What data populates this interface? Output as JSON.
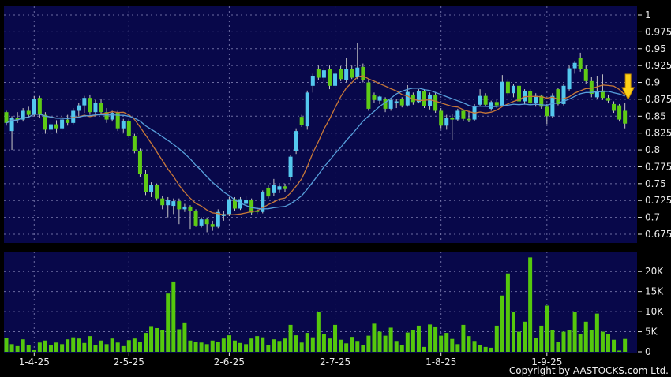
{
  "footer": {
    "copyright": "Copyright by AASTOCKS.com Ltd."
  },
  "colors": {
    "page_background": "#000000",
    "panel_background": "#08084a",
    "grid": "#8f8fc0",
    "up_candle": "#54c8ee",
    "down_candle": "#5ecb15",
    "wick": "#c8c8c8",
    "ma_short": "#c87838",
    "ma_long": "#58a0dc",
    "volume_bar": "#55c80d",
    "axis_text": "#e8e8e8",
    "arrow_fill": "#fdd017",
    "arrow_stroke": "#c98f00"
  },
  "chart_data": [
    {
      "type": "candlestick",
      "panel": "price",
      "title": "",
      "grid": true,
      "legend": "none",
      "ylim": [
        0.6625,
        1.01
      ],
      "y_axis": {
        "tick_labels": [
          "1",
          "0.975",
          "0.95",
          "0.925",
          "0.9",
          "0.875",
          "0.85",
          "0.825",
          "0.8",
          "0.775",
          "0.75",
          "0.725",
          "0.7",
          "0.675"
        ],
        "tick_values": [
          1,
          0.975,
          0.95,
          0.925,
          0.9,
          0.875,
          0.85,
          0.825,
          0.8,
          0.775,
          0.75,
          0.725,
          0.7,
          0.675
        ]
      },
      "x_axis": {
        "month_labels": [
          "1-4-25",
          "2-5-25",
          "2-6-25",
          "2-7-25",
          "1-8-25",
          "1-9-25"
        ],
        "month_indices": [
          5,
          22,
          40,
          59,
          78,
          97
        ]
      },
      "series": [
        {
          "name": "ohlc",
          "type": "candle",
          "data": [
            [
              0.856,
              0.858,
              0.836,
              0.84
            ],
            [
              0.828,
              0.85,
              0.8,
              0.848
            ],
            [
              0.848,
              0.856,
              0.84,
              0.845
            ],
            [
              0.845,
              0.862,
              0.842,
              0.858
            ],
            [
              0.858,
              0.864,
              0.848,
              0.852
            ],
            [
              0.852,
              0.88,
              0.85,
              0.876
            ],
            [
              0.877,
              0.88,
              0.848,
              0.852
            ],
            [
              0.852,
              0.856,
              0.824,
              0.83
            ],
            [
              0.83,
              0.842,
              0.822,
              0.838
            ],
            [
              0.838,
              0.844,
              0.826,
              0.832
            ],
            [
              0.832,
              0.848,
              0.83,
              0.845
            ],
            [
              0.845,
              0.852,
              0.836,
              0.84
            ],
            [
              0.84,
              0.862,
              0.838,
              0.858
            ],
            [
              0.858,
              0.87,
              0.85,
              0.866
            ],
            [
              0.866,
              0.88,
              0.855,
              0.877
            ],
            [
              0.877,
              0.882,
              0.852,
              0.856
            ],
            [
              0.856,
              0.874,
              0.85,
              0.87
            ],
            [
              0.87,
              0.876,
              0.852,
              0.856
            ],
            [
              0.856,
              0.862,
              0.84,
              0.845
            ],
            [
              0.845,
              0.858,
              0.842,
              0.855
            ],
            [
              0.855,
              0.858,
              0.828,
              0.832
            ],
            [
              0.832,
              0.846,
              0.826,
              0.843
            ],
            [
              0.843,
              0.846,
              0.818,
              0.82
            ],
            [
              0.82,
              0.824,
              0.795,
              0.798
            ],
            [
              0.798,
              0.802,
              0.76,
              0.765
            ],
            [
              0.765,
              0.77,
              0.733,
              0.737
            ],
            [
              0.737,
              0.752,
              0.73,
              0.748
            ],
            [
              0.748,
              0.75,
              0.725,
              0.728
            ],
            [
              0.728,
              0.732,
              0.712,
              0.718
            ],
            [
              0.718,
              0.73,
              0.7,
              0.726
            ],
            [
              0.717,
              0.728,
              0.705,
              0.724
            ],
            [
              0.724,
              0.728,
              0.69,
              0.712
            ],
            [
              0.712,
              0.72,
              0.708,
              0.716
            ],
            [
              0.716,
              0.718,
              0.683,
              0.71
            ],
            [
              0.71,
              0.712,
              0.686,
              0.688
            ],
            [
              0.688,
              0.7,
              0.685,
              0.697
            ],
            [
              0.697,
              0.7,
              0.678,
              0.69
            ],
            [
              0.69,
              0.695,
              0.68,
              0.686
            ],
            [
              0.686,
              0.712,
              0.684,
              0.708
            ],
            [
              0.702,
              0.71,
              0.695,
              0.705
            ],
            [
              0.705,
              0.73,
              0.702,
              0.727
            ],
            [
              0.727,
              0.73,
              0.71,
              0.713
            ],
            [
              0.713,
              0.73,
              0.711,
              0.727
            ],
            [
              0.72,
              0.732,
              0.715,
              0.726
            ],
            [
              0.726,
              0.728,
              0.704,
              0.707
            ],
            [
              0.71,
              0.716,
              0.705,
              0.708
            ],
            [
              0.708,
              0.74,
              0.706,
              0.737
            ],
            [
              0.744,
              0.748,
              0.728,
              0.731
            ],
            [
              0.736,
              0.757,
              0.732,
              0.748
            ],
            [
              0.741,
              0.749,
              0.736,
              0.746
            ],
            [
              0.746,
              0.75,
              0.738,
              0.742
            ],
            [
              0.76,
              0.792,
              0.755,
              0.79
            ],
            [
              0.798,
              0.832,
              0.794,
              0.828
            ],
            [
              0.849,
              0.852,
              0.834,
              0.837
            ],
            [
              0.835,
              0.888,
              0.83,
              0.885
            ],
            [
              0.895,
              0.913,
              0.885,
              0.91
            ],
            [
              0.92,
              0.925,
              0.903,
              0.907
            ],
            [
              0.907,
              0.922,
              0.9,
              0.918
            ],
            [
              0.92,
              0.925,
              0.89,
              0.895
            ],
            [
              0.895,
              0.916,
              0.892,
              0.913
            ],
            [
              0.92,
              0.924,
              0.902,
              0.905
            ],
            [
              0.904,
              0.936,
              0.9,
              0.92
            ],
            [
              0.92,
              0.925,
              0.905,
              0.907
            ],
            [
              0.908,
              0.958,
              0.905,
              0.922
            ],
            [
              0.923,
              0.928,
              0.9,
              0.904
            ],
            [
              0.9,
              0.905,
              0.858,
              0.861
            ],
            [
              0.881,
              0.885,
              0.87,
              0.874
            ],
            [
              0.873,
              0.88,
              0.868,
              0.879
            ],
            [
              0.876,
              0.878,
              0.856,
              0.861
            ],
            [
              0.861,
              0.876,
              0.858,
              0.874
            ],
            [
              0.869,
              0.876,
              0.862,
              0.872
            ],
            [
              0.876,
              0.878,
              0.863,
              0.866
            ],
            [
              0.866,
              0.896,
              0.864,
              0.886
            ],
            [
              0.882,
              0.885,
              0.867,
              0.871
            ],
            [
              0.871,
              0.89,
              0.869,
              0.887
            ],
            [
              0.887,
              0.89,
              0.862,
              0.865
            ],
            [
              0.865,
              0.885,
              0.86,
              0.882
            ],
            [
              0.882,
              0.886,
              0.855,
              0.858
            ],
            [
              0.858,
              0.862,
              0.832,
              0.836
            ],
            [
              0.836,
              0.852,
              0.83,
              0.848
            ],
            [
              0.848,
              0.853,
              0.815,
              0.845
            ],
            [
              0.845,
              0.861,
              0.843,
              0.858
            ],
            [
              0.858,
              0.86,
              0.843,
              0.846
            ],
            [
              0.846,
              0.858,
              0.841,
              0.844
            ],
            [
              0.845,
              0.868,
              0.843,
              0.865
            ],
            [
              0.867,
              0.89,
              0.865,
              0.88
            ],
            [
              0.88,
              0.884,
              0.864,
              0.867
            ],
            [
              0.861,
              0.873,
              0.858,
              0.871
            ],
            [
              0.871,
              0.876,
              0.862,
              0.866
            ],
            [
              0.866,
              0.911,
              0.864,
              0.901
            ],
            [
              0.901,
              0.905,
              0.88,
              0.884
            ],
            [
              0.884,
              0.898,
              0.878,
              0.895
            ],
            [
              0.895,
              0.897,
              0.868,
              0.872
            ],
            [
              0.872,
              0.89,
              0.868,
              0.887
            ],
            [
              0.887,
              0.89,
              0.866,
              0.869
            ],
            [
              0.869,
              0.884,
              0.864,
              0.88
            ],
            [
              0.88,
              0.882,
              0.861,
              0.864
            ],
            [
              0.864,
              0.868,
              0.838,
              0.85
            ],
            [
              0.85,
              0.884,
              0.848,
              0.88
            ],
            [
              0.89,
              0.892,
              0.866,
              0.868
            ],
            [
              0.868,
              0.898,
              0.866,
              0.895
            ],
            [
              0.89,
              0.925,
              0.888,
              0.921
            ],
            [
              0.921,
              0.932,
              0.913,
              0.929
            ],
            [
              0.936,
              0.944,
              0.916,
              0.92
            ],
            [
              0.92,
              0.926,
              0.898,
              0.902
            ],
            [
              0.902,
              0.908,
              0.878,
              0.883
            ],
            [
              0.878,
              0.91,
              0.876,
              0.887
            ],
            [
              0.888,
              0.912,
              0.874,
              0.877
            ],
            [
              0.877,
              0.882,
              0.869,
              0.873
            ],
            [
              0.868,
              0.872,
              0.855,
              0.858
            ],
            [
              0.866,
              0.868,
              0.842,
              0.845
            ],
            [
              0.858,
              0.87,
              0.832,
              0.839
            ]
          ]
        },
        {
          "name": "ma_short",
          "type": "line",
          "derived": "sma",
          "period": 10,
          "color_key": "ma_short"
        },
        {
          "name": "ma_long",
          "type": "line",
          "derived": "sma",
          "period": 20,
          "color_key": "ma_long"
        }
      ],
      "annotations": [
        {
          "type": "down-arrow",
          "index": 111,
          "color_key": "arrow_fill"
        }
      ]
    },
    {
      "type": "bar",
      "panel": "volume",
      "unit": "K",
      "grid": true,
      "ylim": [
        0,
        24
      ],
      "y_axis": {
        "tick_labels": [
          "20K",
          "15K",
          "10K",
          "5K",
          "0"
        ],
        "tick_values": [
          20,
          15,
          10,
          5,
          0
        ]
      },
      "values": [
        3.4,
        1.9,
        1.4,
        3.1,
        1.6,
        0.4,
        2.3,
        2.8,
        1.7,
        2.3,
        1.9,
        3.1,
        3.6,
        3.3,
        2.2,
        3.9,
        1.6,
        2.8,
        1.9,
        3.3,
        2.3,
        1.4,
        2.9,
        3.3,
        2.5,
        4.7,
        6.4,
        5.9,
        5.3,
        14.5,
        17.5,
        5.6,
        7.3,
        2.8,
        2.5,
        2.3,
        1.9,
        2.8,
        2.5,
        3.3,
        4.1,
        2.8,
        2.2,
        1.9,
        3.3,
        3.9,
        3.6,
        1.7,
        3.1,
        2.7,
        3.3,
        6.7,
        4.1,
        2.3,
        4.7,
        3.6,
        10.0,
        4.4,
        3.3,
        6.7,
        3.0,
        2.1,
        3.7,
        2.7,
        1.7,
        4.0,
        7.0,
        5.0,
        4.0,
        6.0,
        2.7,
        1.7,
        4.8,
        5.3,
        6.5,
        1.2,
        6.8,
        6.3,
        4.0,
        4.7,
        3.2,
        1.9,
        6.7,
        3.9,
        2.7,
        1.7,
        1.2,
        1.0,
        6.5,
        14.0,
        19.5,
        10.0,
        5.0,
        7.5,
        23.5,
        3.5,
        6.5,
        11.5,
        5.5,
        2.5,
        5.0,
        5.5,
        10.0,
        4.5,
        7.5,
        5.5,
        9.5,
        5.0,
        4.5,
        3.0,
        0.3,
        3.2
      ]
    }
  ]
}
